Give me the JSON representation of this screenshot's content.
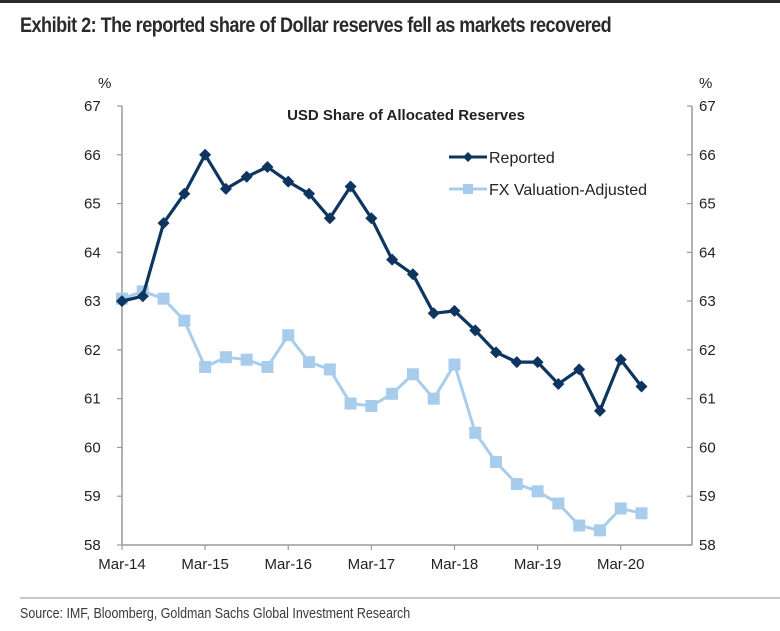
{
  "header": {
    "title": "Exhibit 2: The reported share of Dollar reserves fell as markets recovered"
  },
  "footer": {
    "source": "Source: IMF, Bloomberg, Goldman Sachs Global Investment Research"
  },
  "chart_data": {
    "type": "line",
    "title": "USD Share of Allocated Reserves",
    "xlabel": "",
    "ylabel": "%",
    "ylabel_right": "%",
    "ylim": [
      58,
      67
    ],
    "yticks": [
      58,
      59,
      60,
      61,
      62,
      63,
      64,
      65,
      66,
      67
    ],
    "xtick_labels": [
      "Mar-14",
      "Mar-15",
      "Mar-16",
      "Mar-17",
      "Mar-18",
      "Mar-19",
      "Mar-20"
    ],
    "x": [
      "Mar-14",
      "Jun-14",
      "Sep-14",
      "Dec-14",
      "Mar-15",
      "Jun-15",
      "Sep-15",
      "Dec-15",
      "Mar-16",
      "Jun-16",
      "Sep-16",
      "Dec-16",
      "Mar-17",
      "Jun-17",
      "Sep-17",
      "Dec-17",
      "Mar-18",
      "Jun-18",
      "Sep-18",
      "Dec-18",
      "Mar-19",
      "Jun-19",
      "Sep-19",
      "Dec-19",
      "Mar-20",
      "Jun-20"
    ],
    "grid": false,
    "legend_position": "top-right",
    "series": [
      {
        "name": "Reported",
        "color": "#0d3560",
        "marker": "diamond",
        "values": [
          63.0,
          63.1,
          64.6,
          65.2,
          66.0,
          65.3,
          65.55,
          65.75,
          65.45,
          65.2,
          64.7,
          65.35,
          64.7,
          63.85,
          63.55,
          62.75,
          62.8,
          62.4,
          61.95,
          61.75,
          61.75,
          61.3,
          61.6,
          60.75,
          61.8,
          61.25
        ]
      },
      {
        "name": "FX Valuation-Adjusted",
        "color": "#a8cdec",
        "marker": "square",
        "values": [
          63.05,
          63.2,
          63.05,
          62.6,
          61.65,
          61.85,
          61.8,
          61.65,
          62.3,
          61.75,
          61.6,
          60.9,
          60.85,
          61.1,
          61.5,
          61.0,
          61.7,
          60.3,
          59.7,
          59.25,
          59.1,
          58.85,
          58.4,
          58.3,
          58.75,
          58.65
        ]
      }
    ]
  }
}
